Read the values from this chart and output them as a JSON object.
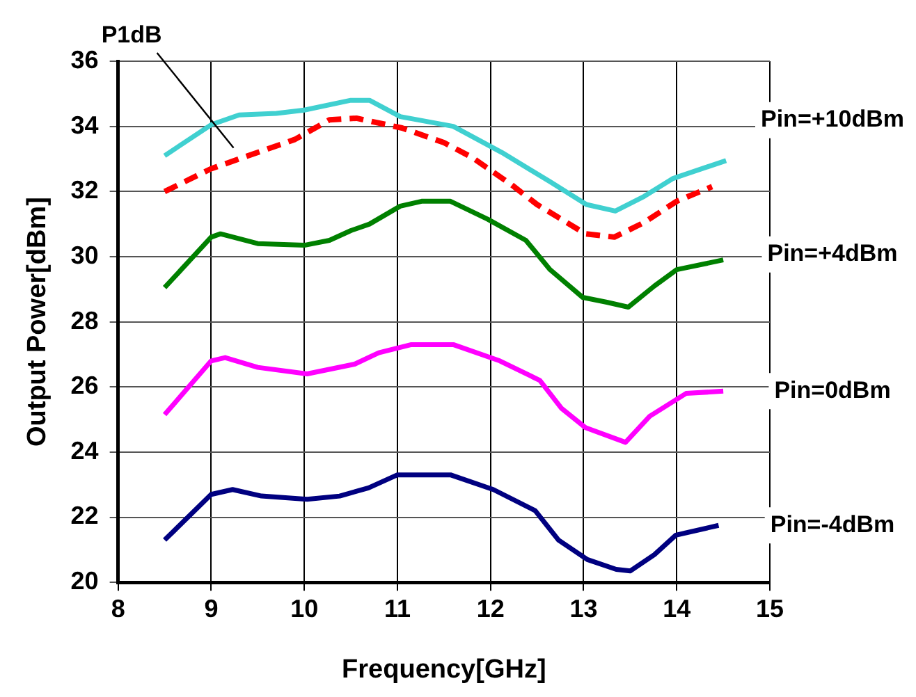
{
  "chart_data": {
    "type": "line",
    "xlabel": "Frequency[GHz]",
    "ylabel": "Output Power[dBm]",
    "xlim": [
      8,
      15
    ],
    "xticks": [
      8,
      9,
      10,
      11,
      12,
      13,
      14,
      15
    ],
    "ylim": [
      20,
      36
    ],
    "yticks": [
      20,
      22,
      24,
      26,
      28,
      30,
      32,
      34,
      36
    ],
    "grid": true,
    "legend": false,
    "marker": "none",
    "series": [
      {
        "name": "Pin=+10dBm",
        "color": "#40d0d0",
        "line_style": "solid",
        "x": [
          8.5,
          9.0,
          9.3,
          9.7,
          10.0,
          10.5,
          10.7,
          11.03,
          11.6,
          12.12,
          12.64,
          13.03,
          13.34,
          13.65,
          13.96,
          14.53
        ],
        "values": [
          33.1,
          34.05,
          34.35,
          34.4,
          34.5,
          34.8,
          34.8,
          34.3,
          34.0,
          33.2,
          32.3,
          31.6,
          31.4,
          31.85,
          32.4,
          32.95
        ]
      },
      {
        "name": "P1dB",
        "color": "#ff0000",
        "line_style": "dashed",
        "x": [
          8.5,
          9.0,
          9.3,
          9.9,
          10.27,
          10.56,
          11.05,
          11.5,
          11.8,
          12.23,
          12.5,
          13.02,
          13.33,
          13.65,
          14.0,
          14.38
        ],
        "values": [
          32.0,
          32.7,
          33.0,
          33.6,
          34.2,
          34.25,
          33.95,
          33.5,
          33.05,
          32.2,
          31.6,
          30.7,
          30.6,
          31.05,
          31.7,
          32.15
        ]
      },
      {
        "name": "Pin=+4dBm",
        "color": "#008000",
        "line_style": "solid",
        "x": [
          8.5,
          9.0,
          9.1,
          9.5,
          10.0,
          10.27,
          10.5,
          10.7,
          11.03,
          11.26,
          11.57,
          11.97,
          12.38,
          12.64,
          12.99,
          13.25,
          13.48,
          13.76,
          14.0,
          14.5
        ],
        "values": [
          29.05,
          30.6,
          30.7,
          30.4,
          30.35,
          30.5,
          30.8,
          31.0,
          31.55,
          31.7,
          31.7,
          31.15,
          30.5,
          29.6,
          28.75,
          28.6,
          28.45,
          29.1,
          29.6,
          29.9
        ]
      },
      {
        "name": "Pin=0dBm",
        "color": "#ff00ff",
        "line_style": "solid",
        "x": [
          8.5,
          9.0,
          9.15,
          9.5,
          10.03,
          10.54,
          10.8,
          11.15,
          11.6,
          12.1,
          12.53,
          12.76,
          13.02,
          13.45,
          13.71,
          14.1,
          14.5
        ],
        "values": [
          25.15,
          26.8,
          26.9,
          26.6,
          26.4,
          26.7,
          27.05,
          27.3,
          27.3,
          26.8,
          26.2,
          25.35,
          24.75,
          24.3,
          25.1,
          25.8,
          25.87
        ]
      },
      {
        "name": "Pin=-4dBm",
        "color": "#000080",
        "line_style": "solid",
        "x": [
          8.5,
          9.0,
          9.23,
          9.54,
          10.03,
          10.38,
          10.69,
          11.0,
          11.57,
          12.03,
          12.48,
          12.73,
          13.04,
          13.35,
          13.5,
          13.76,
          13.99,
          14.45
        ],
        "values": [
          21.3,
          22.7,
          22.85,
          22.65,
          22.55,
          22.65,
          22.9,
          23.3,
          23.3,
          22.85,
          22.2,
          21.3,
          20.7,
          20.4,
          20.35,
          20.85,
          21.45,
          21.75
        ]
      }
    ]
  }
}
